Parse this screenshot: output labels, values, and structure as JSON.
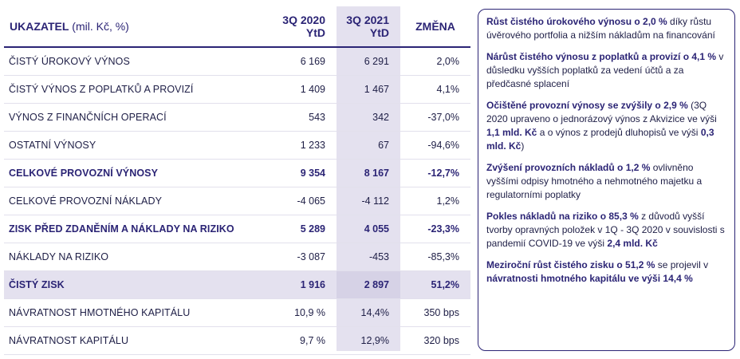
{
  "header": {
    "label_bold": "UKAZATEL",
    "label_unit": " (mil. Kč, %)",
    "col_2020_line1": "3Q 2020",
    "col_2020_line2": "YtD",
    "col_2021_line1": "3Q 2021",
    "col_2021_line2": "YtD",
    "col_change": "ZMĚNA"
  },
  "rows": [
    {
      "label": "ČISTÝ ÚROKOVÝ VÝNOS",
      "v2020": "6 169",
      "v2021": "6 291",
      "change": "2,0%"
    },
    {
      "label": "ČISTÝ VÝNOS Z POPLATKŮ A PROVIZÍ",
      "v2020": "1 409",
      "v2021": "1 467",
      "change": "4,1%"
    },
    {
      "label": "VÝNOS Z FINANČNÍCH OPERACÍ",
      "v2020": "543",
      "v2021": "342",
      "change": "-37,0%"
    },
    {
      "label": "OSTATNÍ VÝNOSY",
      "v2020": "1 233",
      "v2021": "67",
      "change": "-94,6%"
    },
    {
      "label": "CELKOVÉ PROVOZNÍ VÝNOSY",
      "v2020": "9 354",
      "v2021": "8 167",
      "change": "-12,7%"
    },
    {
      "label": "CELKOVÉ PROVOZNÍ NÁKLADY",
      "v2020": "-4 065",
      "v2021": "-4 112",
      "change": "1,2%"
    },
    {
      "label": "ZISK PŘED ZDANĚNÍM A NÁKLADY NA RIZIKO",
      "v2020": "5 289",
      "v2021": "4 055",
      "change": "-23,3%"
    },
    {
      "label": "NÁKLADY NA RIZIKO",
      "v2020": "-3 087",
      "v2021": "-453",
      "change": "-85,3%"
    },
    {
      "label": "ČISTÝ ZISK",
      "v2020": "1 916",
      "v2021": "2 897",
      "change": "51,2%"
    },
    {
      "label": "NÁVRATNOST HMOTNÉHO KAPITÁLU",
      "v2020": "10,9 %",
      "v2021": "14,4%",
      "change": "350 bps"
    },
    {
      "label": "NÁVRATNOST KAPITÁLU",
      "v2020": "9,7 %",
      "v2021": "12,9%",
      "change": "320 bps"
    }
  ],
  "notes": [
    {
      "b1": "Růst čistého úrokového výnosu o 2,0 %",
      "t1": " díky růstu úvěrového portfolia a nižším nákladům na financování",
      "b2": "",
      "t2": "",
      "b3": "",
      "t3": "",
      "b4": "",
      "t4": ""
    },
    {
      "b1": "Nárůst čistého výnosu z poplatků a provizí o 4,1 %",
      "t1": " v důsledku vyšších poplatků za vedení účtů a za předčasné splacení",
      "b2": "",
      "t2": "",
      "b3": "",
      "t3": "",
      "b4": "",
      "t4": ""
    },
    {
      "b1": "Očištěné provozní výnosy se zvýšily o 2,9 %",
      "t1": " (3Q 2020 upraveno o jednorázový výnos z Akvizice ve výši ",
      "b2": "1,1 mld. Kč",
      "t2": " a o výnos z prodejů dluhopisů ve výši ",
      "b3": "0,3 mld. Kč",
      "t3": ")",
      "b4": "",
      "t4": ""
    },
    {
      "b1": "Zvýšení provozních nákladů o 1,2 %",
      "t1": " ovlivněno vyššími odpisy hmotného a nehmotného majetku a regulatorními poplatky",
      "b2": "",
      "t2": "",
      "b3": "",
      "t3": "",
      "b4": "",
      "t4": ""
    },
    {
      "b1": "Pokles nákladů na riziko o 85,3 %",
      "t1": " z důvodů vyšší tvorby opravných položek v 1Q - 3Q 2020 v souvislosti s pandemií COVID-19 ve výši ",
      "b2": "2,4 mld. Kč",
      "t2": "",
      "b3": "",
      "t3": "",
      "b4": "",
      "t4": ""
    },
    {
      "b1": "Meziroční růst čistého zisku o 51,2 %",
      "t1": " se projevil v ",
      "b2": "návratnosti hmotného kapitálu ve výši 14,4 %",
      "t2": "",
      "b3": "",
      "t3": "",
      "b4": "",
      "t4": ""
    }
  ]
}
